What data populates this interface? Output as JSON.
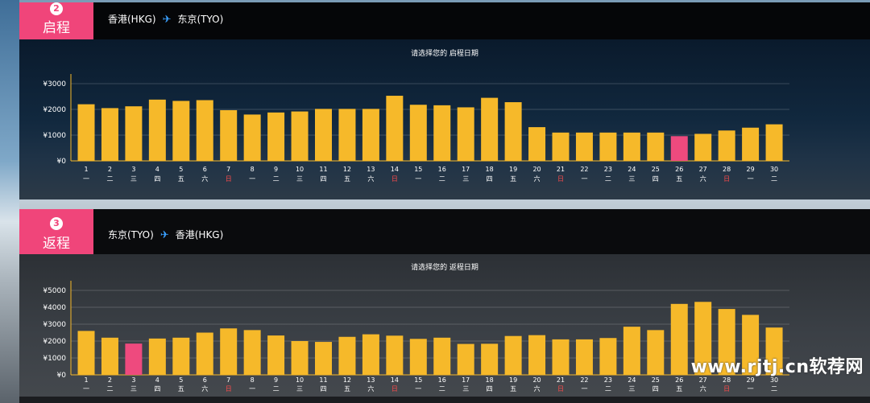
{
  "outbound": {
    "step_number": "2",
    "step_label": "启程",
    "from": "香港(HKG)",
    "to": "东京(TYO)",
    "chart_title": "请选择您的 启程日期"
  },
  "return": {
    "step_number": "3",
    "step_label": "返程",
    "from": "东京(TYO)",
    "to": "香港(HKG)",
    "chart_title": "请选择您的 返程日期"
  },
  "watermark": "www.rjtj.cn软荐网",
  "colors": {
    "bar": "#f6b92a",
    "selected_bar": "#ee4a7e",
    "accent": "#f0457a",
    "sunday_text": "#ff4b4b"
  },
  "chart_data": [
    {
      "type": "bar",
      "title": "请选择您的 启程日期",
      "categories": [
        "1",
        "2",
        "3",
        "4",
        "5",
        "6",
        "7",
        "8",
        "9",
        "10",
        "11",
        "12",
        "13",
        "14",
        "15",
        "16",
        "17",
        "18",
        "19",
        "20",
        "21",
        "22",
        "23",
        "24",
        "25",
        "26",
        "27",
        "28",
        "29",
        "30"
      ],
      "weekdays": [
        "一",
        "二",
        "三",
        "四",
        "五",
        "六",
        "日",
        "一",
        "二",
        "三",
        "四",
        "五",
        "六",
        "日",
        "一",
        "二",
        "三",
        "四",
        "五",
        "六",
        "日",
        "一",
        "二",
        "三",
        "四",
        "五",
        "六",
        "日",
        "一",
        "二"
      ],
      "values": [
        2200,
        2050,
        2120,
        2380,
        2330,
        2360,
        1970,
        1800,
        1880,
        1920,
        2020,
        2020,
        2020,
        2530,
        2180,
        2160,
        2080,
        2450,
        2280,
        1310,
        1100,
        1100,
        1100,
        1100,
        1100,
        960,
        1050,
        1180,
        1290,
        1420
      ],
      "selected_index": 25,
      "yticks": [
        "¥0",
        "¥1000",
        "¥2000",
        "¥3000"
      ],
      "ylim": [
        0,
        3000
      ]
    },
    {
      "type": "bar",
      "title": "请选择您的 返程日期",
      "categories": [
        "1",
        "2",
        "3",
        "4",
        "5",
        "6",
        "7",
        "8",
        "9",
        "10",
        "11",
        "12",
        "13",
        "14",
        "15",
        "16",
        "17",
        "18",
        "19",
        "20",
        "21",
        "22",
        "23",
        "24",
        "25",
        "26",
        "27",
        "28",
        "29",
        "30"
      ],
      "weekdays": [
        "一",
        "二",
        "三",
        "四",
        "五",
        "六",
        "日",
        "一",
        "二",
        "三",
        "四",
        "五",
        "六",
        "日",
        "一",
        "二",
        "三",
        "四",
        "五",
        "六",
        "日",
        "一",
        "二",
        "三",
        "四",
        "五",
        "六",
        "日",
        "一",
        "二"
      ],
      "values": [
        2600,
        2200,
        1850,
        2150,
        2200,
        2500,
        2750,
        2650,
        2330,
        2000,
        1950,
        2250,
        2400,
        2320,
        2130,
        2200,
        1830,
        1840,
        2300,
        2350,
        2100,
        2100,
        2180,
        2850,
        2650,
        4200,
        4320,
        3900,
        3550,
        2800
      ],
      "selected_index": 2,
      "yticks": [
        "¥0",
        "¥1000",
        "¥2000",
        "¥3000",
        "¥4000",
        "¥5000"
      ],
      "ylim": [
        0,
        5000
      ]
    }
  ]
}
